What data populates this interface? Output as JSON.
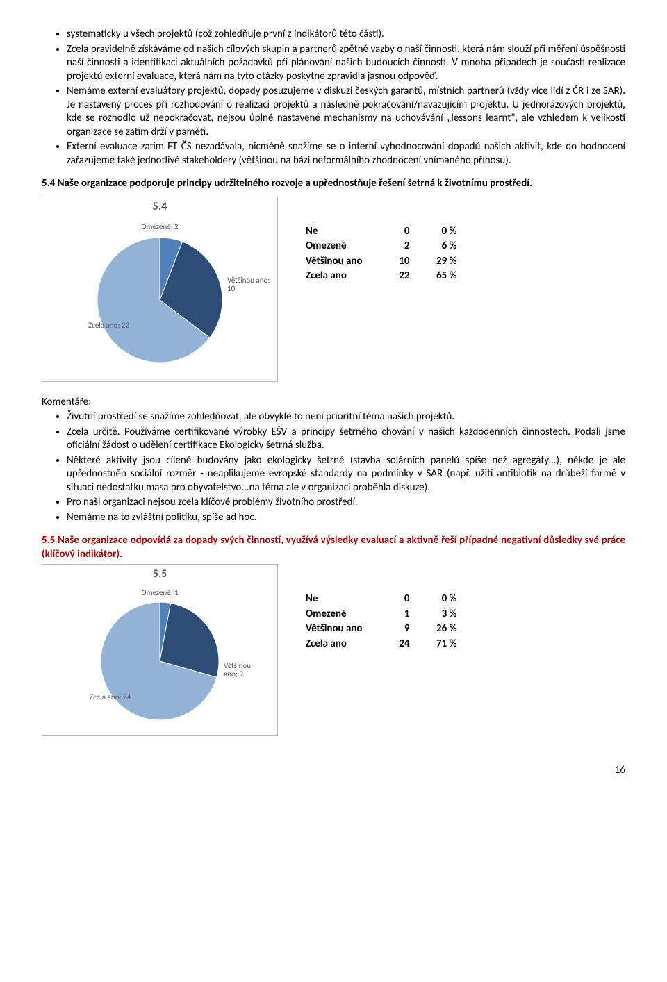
{
  "bullets_top": [
    "systematicky u všech projektů (což zohledňuje první z indikátorů této části).",
    "Zcela pravidelně získáváme od našich cílových skupin a partnerů zpětné vazby o naší činnosti, která nám slouží při měření úspěšnosti naší činnosti a identifikaci aktuálních požadavků při plánování našich budoucích činností. V mnoha případech je součástí realizace projektů externí evaluace, která nám na tyto otázky poskytne zpravidla jasnou odpověď.",
    "Nemáme externí evaluátory projektů, dopady posuzujeme v diskuzi českých garantů, místních partnerů (vždy více lidí z ČR i ze SAR). Je nastavený proces při rozhodování o realizaci projektů a následně pokračování/navazujícím projektu. U jednorázových projektů, kde se rozhodlo už nepokračovat, nejsou úplně nastavené mechanismy na uchovávání „lessons learnt\", ale vzhledem k velikosti organizace se zatím drží v paměti.",
    "Externí evaluace zatím FT ČS nezadávala, nicméně snažíme se o interní vyhodnocování dopadů našich aktivit, kde do hodnocení zařazujeme také jednotlivé stakeholdery (většinou na bázi neformálního zhodnocení vnímaného přínosu)."
  ],
  "section54": {
    "heading": "5.4 Naše organizace podporuje principy udržitelného rozvoje a upřednostňuje řešení šetrná k životnímu prostředí.",
    "chart": {
      "type": "pie",
      "title": "5.4",
      "series": [
        {
          "label": "Omezeně",
          "value": 2,
          "color": "#4f81bd",
          "display": "Omezeně; 2"
        },
        {
          "label": "Většinou ano",
          "value": 10,
          "color": "#2c4d75",
          "display": "Většinou ano; 10"
        },
        {
          "label": "Zcela ano",
          "value": 22,
          "color": "#93b3d7",
          "display": "Zcela ano; 22"
        }
      ],
      "background": "#ffffff",
      "border": "#bfbfbf",
      "label_color": "#595959",
      "label_fontsize": 11
    },
    "table": {
      "rows": [
        {
          "label": "Ne",
          "count": 0,
          "pct": "0 %"
        },
        {
          "label": "Omezeně",
          "count": 2,
          "pct": "6 %"
        },
        {
          "label": "Většinou ano",
          "count": 10,
          "pct": "29 %"
        },
        {
          "label": "Zcela ano",
          "count": 22,
          "pct": "65 %"
        }
      ]
    }
  },
  "komentare_label": "Komentáře:",
  "bullets_mid": [
    "Životní prostředí se snažíme zohledňovat, ale obvykle to není prioritní téma našich projektů.",
    "Zcela určitě. Používáme certifikované výrobky EŠV a principy šetrného chování v našich každodenních činnostech. Podali jsme oficiální žádost o udělení certifikace Ekologicky šetrná služba.",
    "Některé aktivity jsou cíleně budovány jako ekologicky šetrné (stavba solárních panelů spíše než agregáty...), někde je ale upřednostněn sociální rozměr - neaplikujeme evropské standardy na podmínky v SAR (např. užití antibiotik na drůbeží farmě v situaci nedostatku masa pro obyvatelstvo...na téma ale v organizaci proběhla diskuze).",
    "Pro naši organizaci nejsou zcela klíčové problémy životního prostředí.",
    "Nemáme na to zvláštní politiku, spíše ad hoc."
  ],
  "section55": {
    "heading": "5.5 Naše organizace odpovídá za dopady svých činností, využívá výsledky evaluací a aktivně řeší případné negativní důsledky své práce (klíčový indikátor).",
    "chart": {
      "type": "pie",
      "title": "5.5",
      "series": [
        {
          "label": "Omezeně",
          "value": 1,
          "color": "#4f81bd",
          "display": "Omezeně; 1"
        },
        {
          "label": "Většinou ano",
          "value": 9,
          "color": "#2c4d75",
          "display": "Většinou ano; 9"
        },
        {
          "label": "Zcela ano",
          "value": 24,
          "color": "#93b3d7",
          "display": "Zcela ano; 24"
        }
      ],
      "background": "#ffffff",
      "border": "#bfbfbf",
      "label_color": "#595959",
      "label_fontsize": 11
    },
    "table": {
      "rows": [
        {
          "label": "Ne",
          "count": 0,
          "pct": "0 %"
        },
        {
          "label": "Omezeně",
          "count": 1,
          "pct": "3 %"
        },
        {
          "label": "Většinou ano",
          "count": 9,
          "pct": "26 %"
        },
        {
          "label": "Zcela ano",
          "count": 24,
          "pct": "71 %"
        }
      ]
    }
  },
  "page_number": "16"
}
